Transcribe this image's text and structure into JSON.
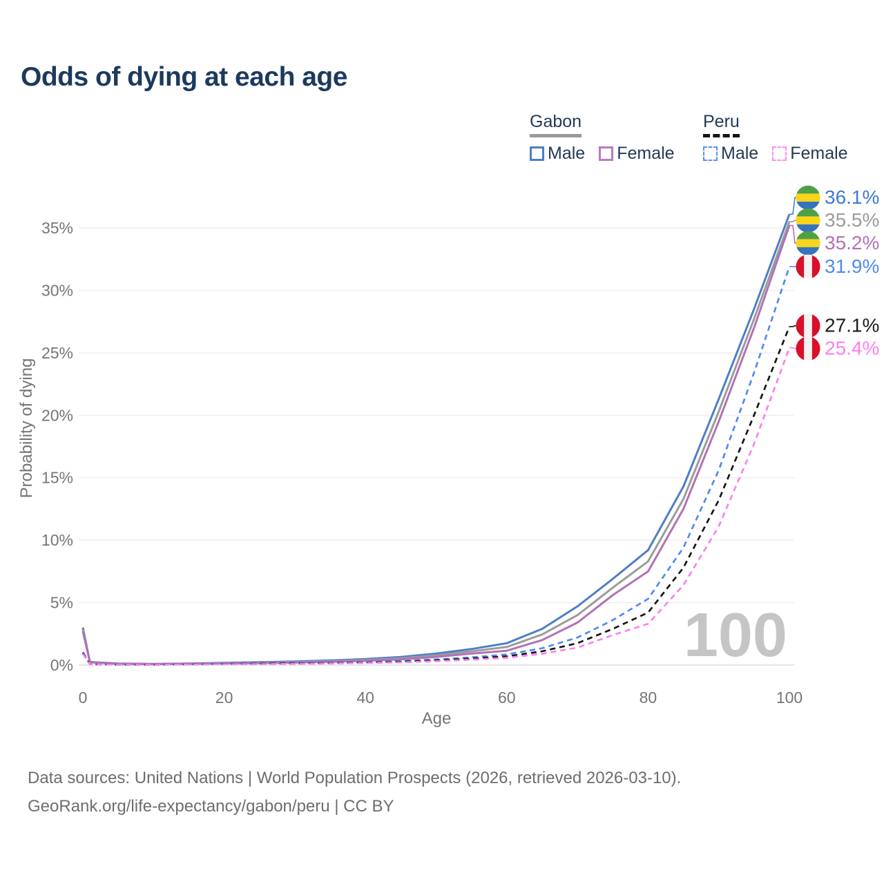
{
  "title": "Odds of dying at each age",
  "legend": {
    "groups": [
      {
        "label": "Gabon",
        "style": "solid",
        "underline_color": "#9a9a9a",
        "items": [
          {
            "label": "Male",
            "color": "#4d7ec6"
          },
          {
            "label": "Female",
            "color": "#bc77bd"
          }
        ]
      },
      {
        "label": "Peru",
        "style": "dashed",
        "underline_color": "#141414",
        "items": [
          {
            "label": "Male",
            "color": "#5e8df2"
          },
          {
            "label": "Female",
            "color": "#fc8df5"
          }
        ]
      }
    ]
  },
  "watermark": "100",
  "footer": {
    "line1": "Data sources: United Nations | World Population Prospects (2026, retrieved 2026-03-10).",
    "line2": "GeoRank.org/life-expectancy/gabon/peru | CC BY"
  },
  "flags": {
    "gabon": {
      "type": "horizontal",
      "colors": [
        "#4da046",
        "#f7d51d",
        "#3673bf"
      ]
    },
    "peru": {
      "type": "vertical",
      "colors": [
        "#d8102a",
        "#f2f2f2",
        "#d8102a"
      ]
    }
  },
  "chart_data": {
    "type": "line",
    "title": "Odds of dying at each age",
    "xlabel": "Age",
    "ylabel": "Probability of dying",
    "xlim": [
      0,
      100
    ],
    "ylim": [
      0,
      37.5
    ],
    "grid": true,
    "x_ticks": [
      0,
      20,
      40,
      60,
      80,
      100
    ],
    "x_tick_labels": [
      "0",
      "20",
      "40",
      "60",
      "80",
      "100"
    ],
    "y_ticks": [
      0,
      5,
      10,
      15,
      20,
      25,
      30,
      35
    ],
    "y_tick_labels": [
      "0%",
      "5%",
      "10%",
      "15%",
      "20%",
      "25%",
      "30%",
      "35%"
    ],
    "ages": [
      0,
      1,
      5,
      10,
      15,
      20,
      25,
      30,
      35,
      40,
      45,
      50,
      55,
      60,
      65,
      70,
      75,
      80,
      85,
      90,
      95,
      100
    ],
    "series": [
      {
        "id": "gabon-male",
        "name": "Gabon Male",
        "country": "Gabon",
        "sex": "Male",
        "color": "#4d7ec6",
        "label_color": "#3d79d2",
        "dash": "solid",
        "flag": "gabon",
        "end_label": "36.1%",
        "end_value": 36.1,
        "values": [
          3.0,
          0.25,
          0.12,
          0.09,
          0.12,
          0.18,
          0.23,
          0.29,
          0.37,
          0.48,
          0.65,
          0.92,
          1.28,
          1.75,
          2.9,
          4.7,
          6.9,
          9.2,
          14.3,
          21.3,
          28.5,
          36.1
        ]
      },
      {
        "id": "gabon-both",
        "name": "Gabon Both sexes",
        "country": "Gabon",
        "sex": "Both",
        "color": "#9b9b9b",
        "label_color": "#9b9b9b",
        "dash": "solid",
        "flag": "gabon",
        "end_label": "35.5%",
        "end_value": 35.5,
        "values": [
          2.85,
          0.24,
          0.11,
          0.085,
          0.11,
          0.15,
          0.19,
          0.24,
          0.31,
          0.41,
          0.55,
          0.78,
          1.1,
          1.45,
          2.45,
          4.0,
          6.2,
          8.3,
          13.3,
          20.3,
          27.7,
          35.5
        ]
      },
      {
        "id": "gabon-female",
        "name": "Gabon Female",
        "country": "Gabon",
        "sex": "Female",
        "color": "#b172b4",
        "label_color": "#b172b4",
        "dash": "solid",
        "flag": "gabon",
        "end_label": "35.2%",
        "end_value": 35.2,
        "values": [
          2.7,
          0.22,
          0.1,
          0.08,
          0.1,
          0.13,
          0.16,
          0.2,
          0.26,
          0.35,
          0.46,
          0.65,
          0.92,
          1.15,
          2.0,
          3.4,
          5.6,
          7.5,
          12.5,
          19.5,
          27.0,
          35.2
        ]
      },
      {
        "id": "peru-male",
        "name": "Peru Male",
        "country": "Peru",
        "sex": "Male",
        "color": "#4f89f3",
        "label_color": "#4f89f3",
        "dash": "dashed",
        "flag": "peru",
        "end_label": "31.9%",
        "end_value": 31.9,
        "values": [
          1.05,
          0.08,
          0.04,
          0.04,
          0.07,
          0.11,
          0.14,
          0.16,
          0.19,
          0.24,
          0.32,
          0.45,
          0.62,
          0.85,
          1.35,
          2.2,
          3.6,
          5.3,
          9.4,
          15.6,
          23.4,
          31.9
        ]
      },
      {
        "id": "peru-both",
        "name": "Peru Both sexes",
        "country": "Peru",
        "sex": "Both",
        "color": "#161616",
        "label_color": "#1c1c1c",
        "dash": "dashed",
        "flag": "peru",
        "end_label": "27.1%",
        "end_value": 27.1,
        "values": [
          0.95,
          0.075,
          0.035,
          0.035,
          0.06,
          0.09,
          0.11,
          0.13,
          0.16,
          0.2,
          0.27,
          0.38,
          0.52,
          0.7,
          1.1,
          1.75,
          2.9,
          4.2,
          7.8,
          13.2,
          20.0,
          27.1
        ]
      },
      {
        "id": "peru-female",
        "name": "Peru Female",
        "country": "Peru",
        "sex": "Female",
        "color": "#fb80f0",
        "label_color": "#fb80f0",
        "dash": "dashed",
        "flag": "peru",
        "end_label": "25.4%",
        "end_value": 25.4,
        "values": [
          0.9,
          0.07,
          0.03,
          0.03,
          0.05,
          0.07,
          0.08,
          0.1,
          0.13,
          0.17,
          0.22,
          0.31,
          0.43,
          0.58,
          0.9,
          1.4,
          2.4,
          3.3,
          6.4,
          11.1,
          17.7,
          25.4
        ]
      }
    ]
  }
}
